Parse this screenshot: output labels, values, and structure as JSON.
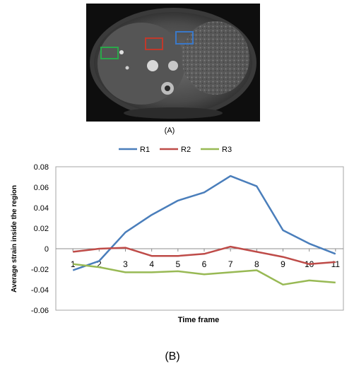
{
  "panel_a": {
    "label": "(A)",
    "roi_colors": [
      "#3a78c8",
      "#c0392b",
      "#2aa84a"
    ]
  },
  "panel_b_label": "(B)",
  "colors": {
    "R1": "#4a7ebb",
    "R2": "#be4b48",
    "R3": "#98b954"
  },
  "chart_data": {
    "type": "line",
    "title": "",
    "xlabel": "Time frame",
    "ylabel": "Average strain inside the region",
    "x": [
      1,
      2,
      3,
      4,
      5,
      6,
      7,
      8,
      9,
      10,
      11
    ],
    "x_tick_labels": [
      "1",
      "2",
      "3",
      "4",
      "5",
      "6",
      "7",
      "8",
      "9",
      "10",
      "11"
    ],
    "y_tick_labels": [
      "0.08",
      "0.06",
      "0.04",
      "0.02",
      "0",
      "-0.02",
      "-0.04",
      "-0.06"
    ],
    "ylim": [
      -0.06,
      0.08
    ],
    "y_ticks": [
      0.08,
      0.06,
      0.04,
      0.02,
      0,
      -0.02,
      -0.04,
      -0.06
    ],
    "grid": false,
    "legend": "top",
    "series": [
      {
        "name": "R1",
        "values": [
          -0.021,
          -0.012,
          0.016,
          0.033,
          0.047,
          0.055,
          0.071,
          0.061,
          0.018,
          0.005,
          -0.005
        ]
      },
      {
        "name": "R2",
        "values": [
          -0.003,
          0.0,
          0.001,
          -0.007,
          -0.007,
          -0.005,
          0.002,
          -0.003,
          -0.008,
          -0.015,
          -0.013
        ]
      },
      {
        "name": "R3",
        "values": [
          -0.015,
          -0.018,
          -0.023,
          -0.023,
          -0.022,
          -0.025,
          -0.023,
          -0.021,
          -0.035,
          -0.031,
          -0.033
        ]
      }
    ]
  }
}
